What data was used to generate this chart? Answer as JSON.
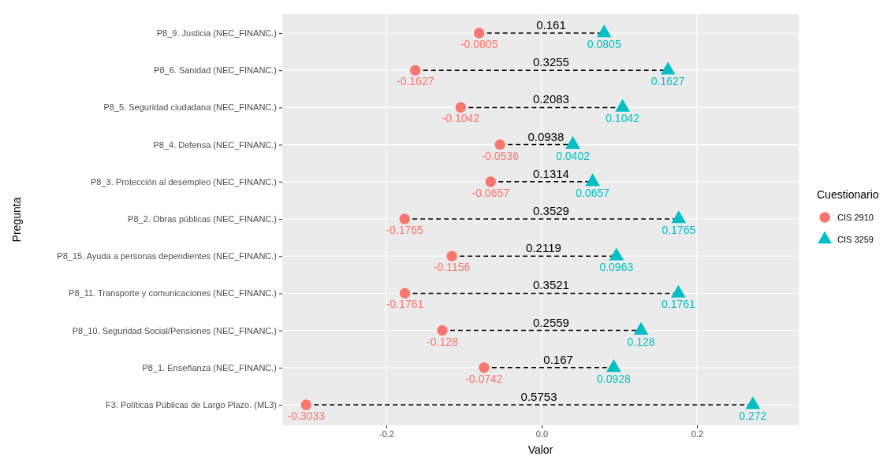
{
  "chart_data": {
    "type": "scatter",
    "orientation": "horizontal",
    "xlabel": "Valor",
    "ylabel": "Pregunta",
    "legend_title": "Cuestionario",
    "legend": "right",
    "grid": true,
    "line_style": "dashed",
    "data_labels": true,
    "categories": [
      "P8_9. Justicia (NEC_FINANC.)",
      "P8_6. Sanidad (NEC_FINANC.)",
      "P8_5. Seguridad ciudadana (NEC_FINANC.)",
      "P8_4. Defensa (NEC_FINANC.)",
      "P8_3. Protección al desempleo (NEC_FINANC.)",
      "P8_2. Obras públicas (NEC_FINANC.)",
      "P8_15. Ayuda a personas dependientes (NEC_FINANC.)",
      "P8_11. Transporte y comunicaciones (NEC_FINANC.)",
      "P8_10. Seguridad Social/Pensiones (NEC_FINANC.)",
      "P8_1. Enseñanza (NEC_FINANC.)",
      "F3. Políticas Públicas de Largo Plazo. (ML3)"
    ],
    "xlim": [
      -0.334,
      0.331
    ],
    "xticks": [
      -0.2,
      {
        "value": 0,
        "label": "0.0"
      },
      0.2
    ],
    "series": [
      {
        "name": "CIS 2910",
        "color": "#f8766d",
        "marker": "circle",
        "values": [
          -0.0805,
          -0.1627,
          -0.1042,
          -0.0536,
          -0.0657,
          -0.1765,
          -0.1156,
          -0.1761,
          -0.128,
          -0.0742,
          -0.3033
        ]
      },
      {
        "name": "CIS 3259",
        "color": "#00bfc4",
        "marker": "triangle",
        "values": [
          0.0805,
          0.1627,
          0.1042,
          0.0402,
          0.0657,
          0.1765,
          0.0963,
          0.1761,
          0.128,
          0.0928,
          0.272
        ]
      }
    ],
    "annotations": [
      "0.161",
      "0.3255",
      "0.2083",
      "0.0938",
      "0.1314",
      "0.3529",
      "0.2119",
      "0.3521",
      "0.2559",
      "0.167",
      "0.5753"
    ]
  }
}
